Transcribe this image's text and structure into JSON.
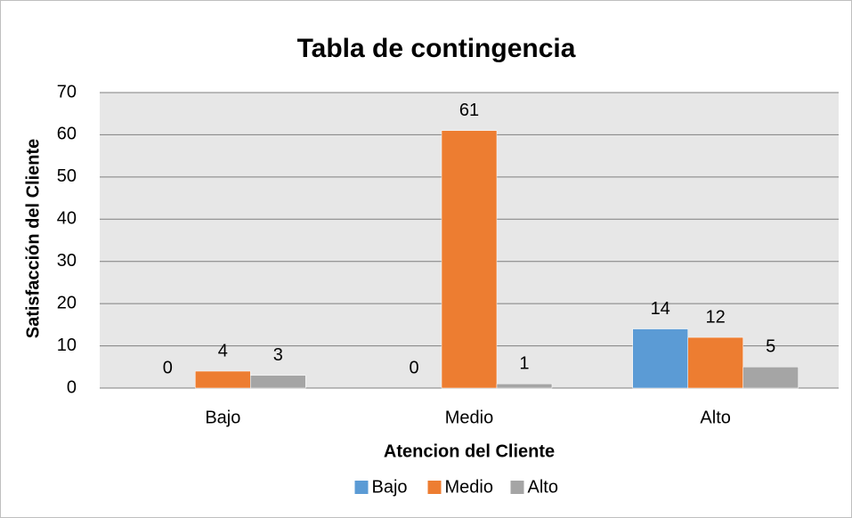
{
  "chart_data": {
    "type": "bar",
    "title": "Tabla de contingencia",
    "x_label": "Atencion del Cliente",
    "y_label": "Satisfacción del Cliente",
    "categories": [
      "Bajo",
      "Medio",
      "Alto"
    ],
    "series": [
      {
        "name": "Bajo",
        "color": "#5b9bd5",
        "values": [
          0,
          0,
          14
        ]
      },
      {
        "name": "Medio",
        "color": "#ed7d31",
        "values": [
          4,
          61,
          12
        ]
      },
      {
        "name": "Alto",
        "color": "#a5a5a5",
        "values": [
          3,
          1,
          5
        ]
      }
    ],
    "ylim": [
      0,
      70
    ],
    "yticks": [
      0,
      10,
      20,
      30,
      40,
      50,
      60,
      70
    ],
    "grid": true,
    "legend": "bottom"
  }
}
